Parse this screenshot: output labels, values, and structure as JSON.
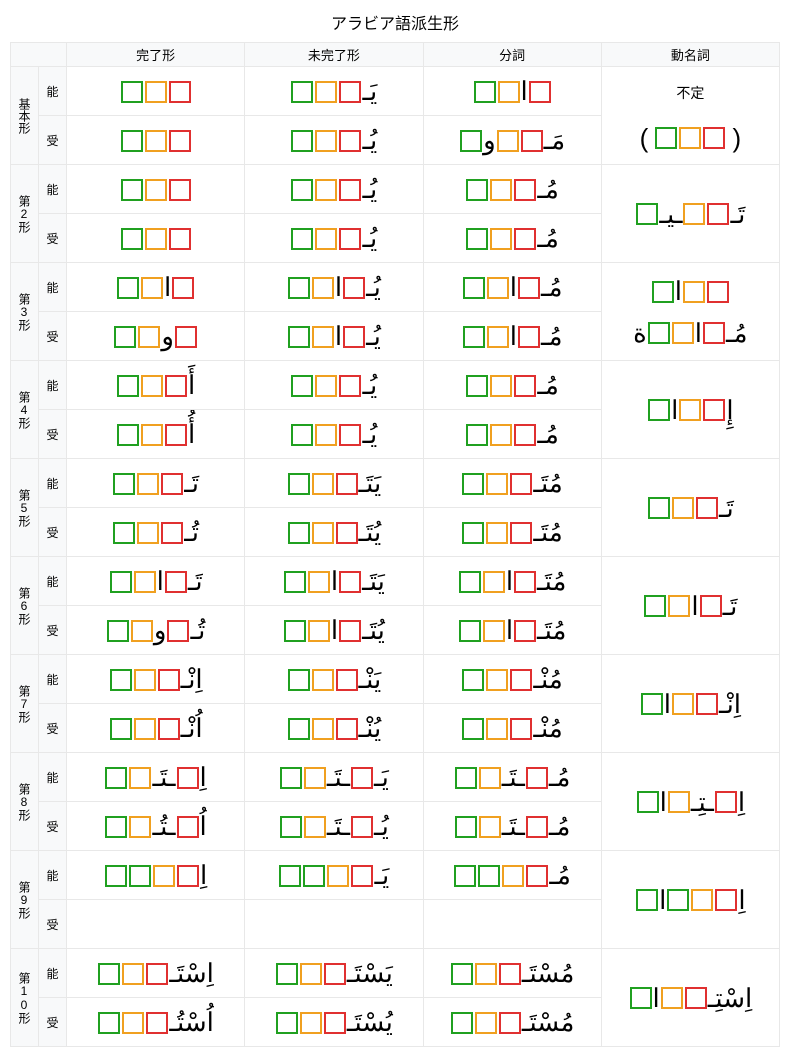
{
  "title": "アラビア語派生形",
  "columns": [
    "完了形",
    "未完了形",
    "分詞",
    "動名詞"
  ],
  "voice_active": "能",
  "voice_passive": "受",
  "indefinite": "不定",
  "forms": [
    {
      "label": "基本形"
    },
    {
      "label": "第2形"
    },
    {
      "label": "第3形"
    },
    {
      "label": "第4形"
    },
    {
      "label": "第5形"
    },
    {
      "label": "第6形"
    },
    {
      "label": "第7形"
    },
    {
      "label": "第8形"
    },
    {
      "label": "第9形"
    },
    {
      "label": "第10形"
    }
  ],
  "colors": {
    "red": "#e03030",
    "orange": "#f0a020",
    "green": "#20a020",
    "border": "#e8e8e8",
    "header_bg": "#f8f9fa"
  },
  "arabic_elements": {
    "ya_prefix": "يَـ",
    "ya_u_prefix": "يُـ",
    "mim_prefix": "مَـ",
    "mim_u_prefix": "مُـ",
    "alif_hamza": "أَ",
    "alif_hamza_u": "أُ",
    "ta_prefix": "تَـ",
    "ta_u_prefix": "تُـ",
    "alif": "ا",
    "alif_kasr": "اِ",
    "waw": "و",
    "nun": "نْ",
    "ta_marb": "ة",
    "sin_ta": "سْتَ",
    "sin_tu": "سْتُ"
  }
}
